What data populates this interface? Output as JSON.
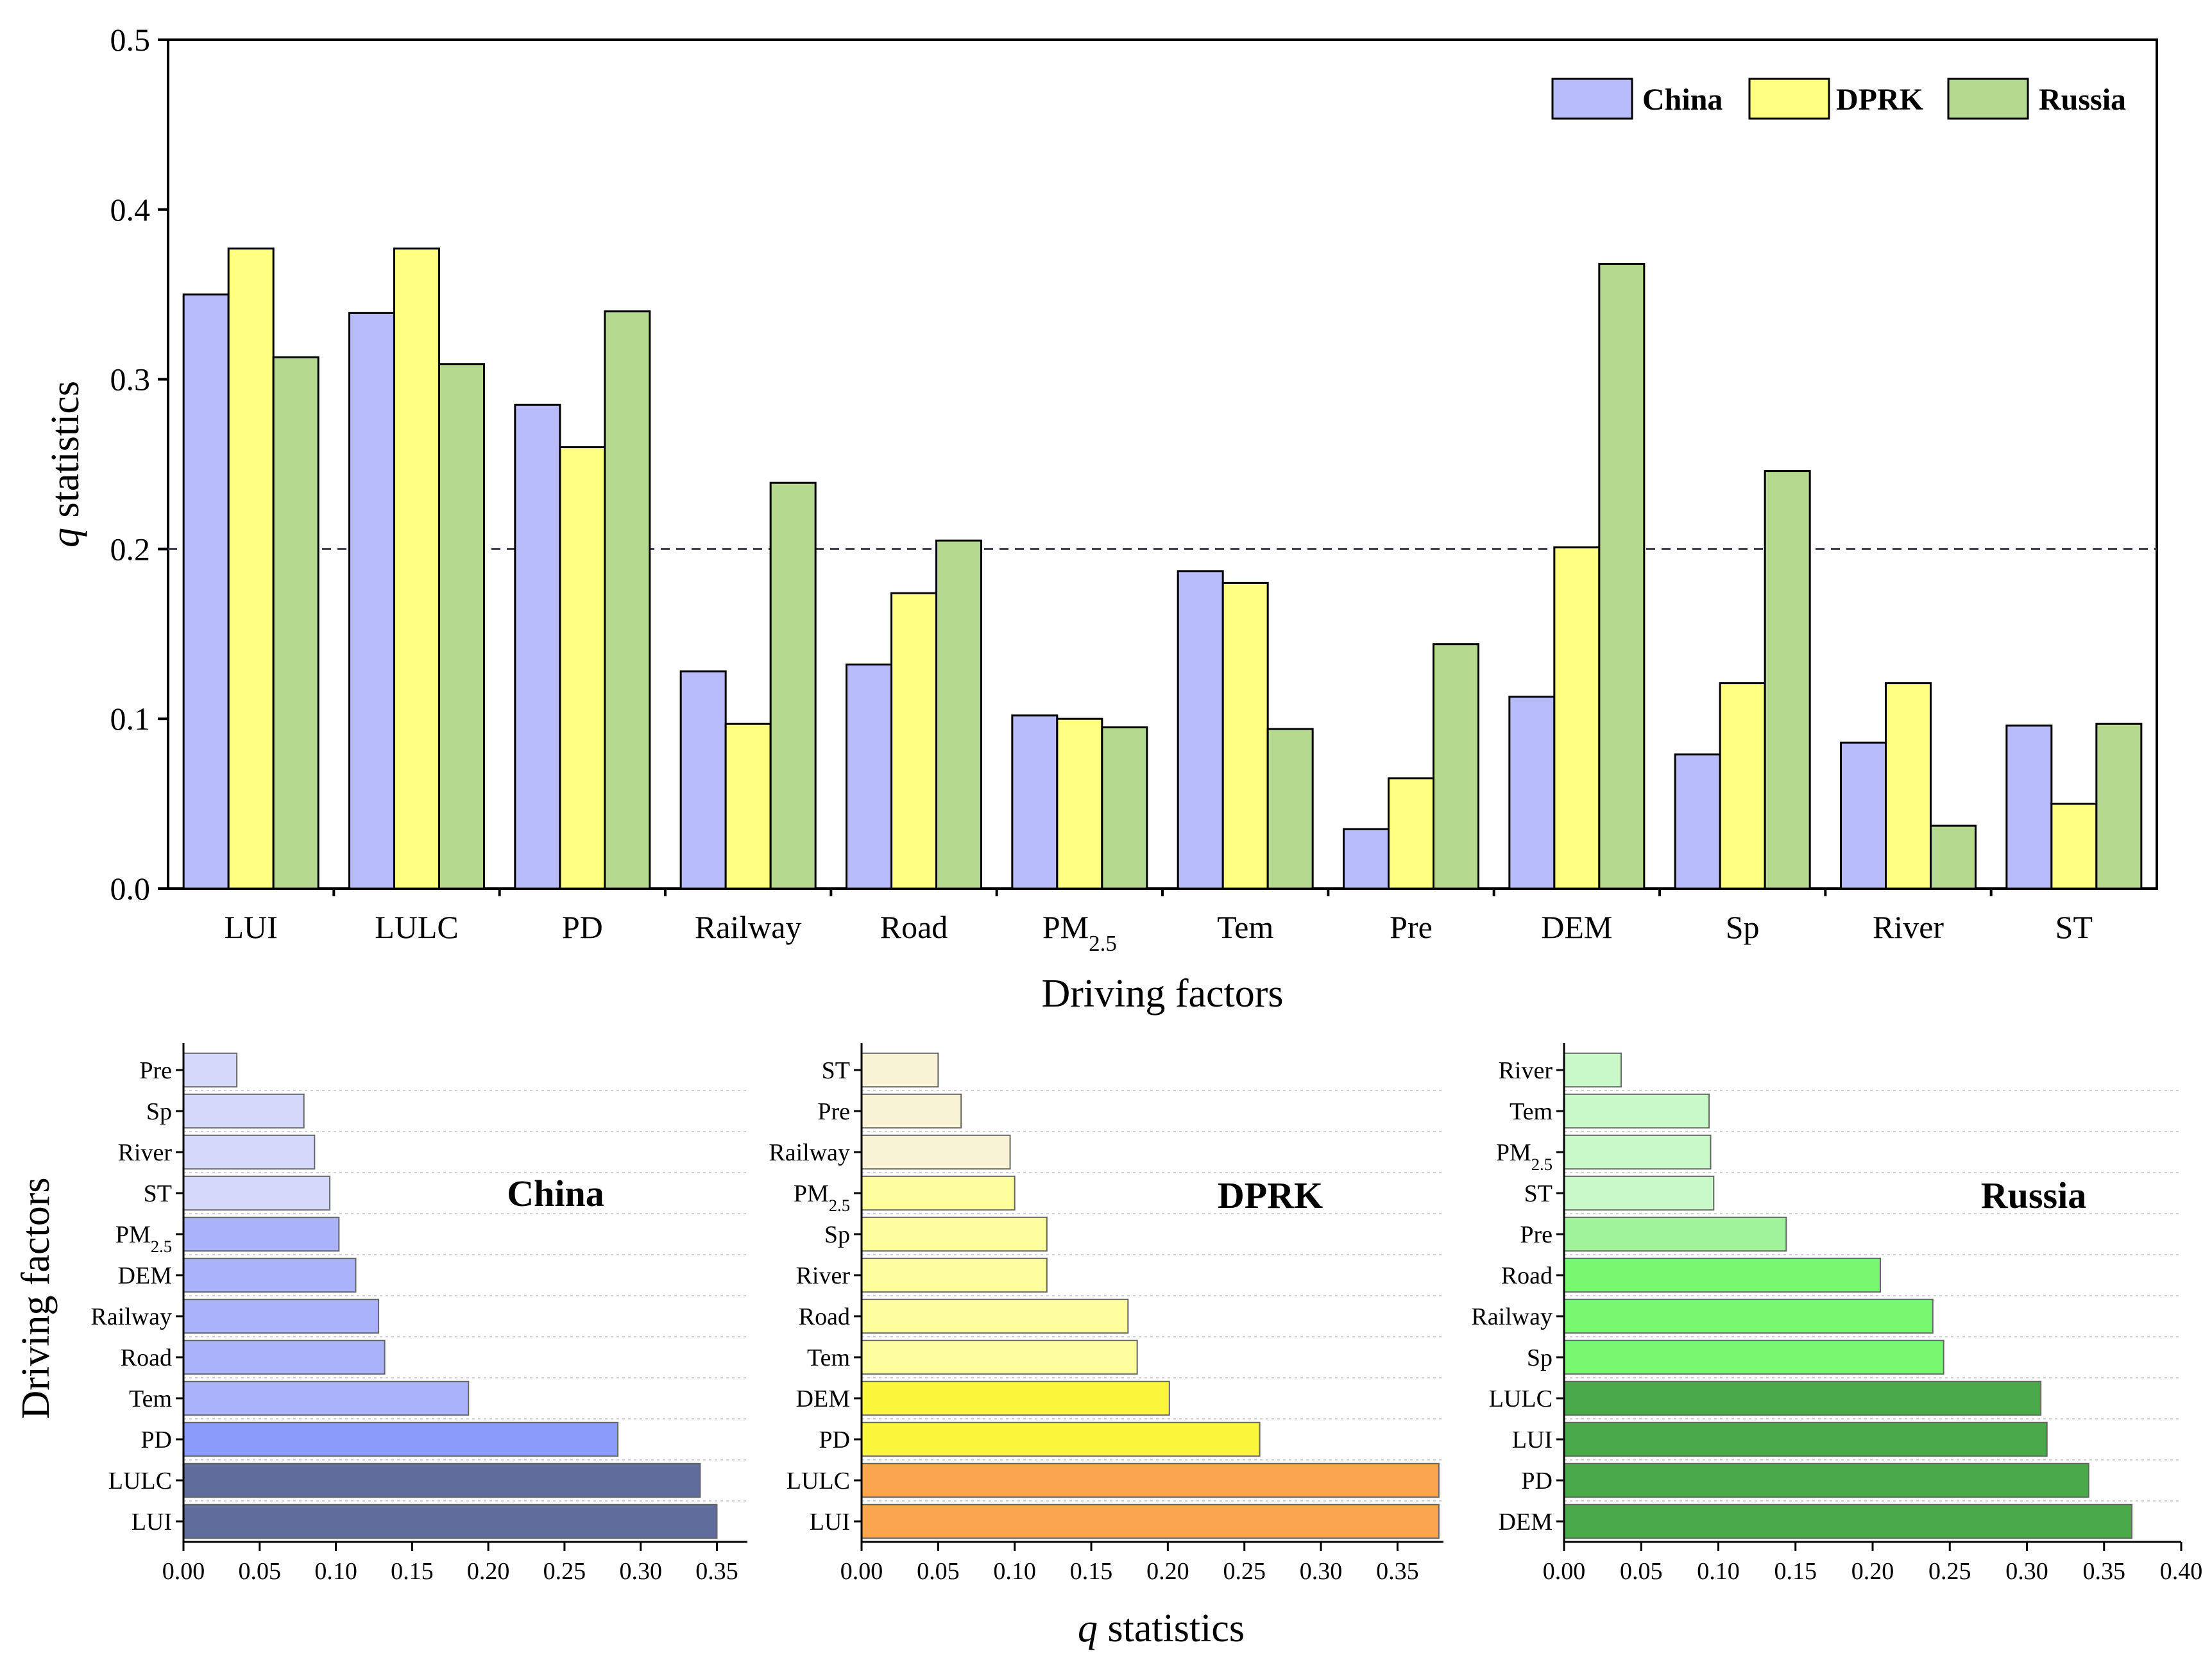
{
  "chart_data": [
    {
      "type": "bar",
      "title": "",
      "xlabel": "Driving factors",
      "ylabel_italic": "q",
      "ylabel_rest": " statistics",
      "ylim": [
        0,
        0.5
      ],
      "yticks": [
        "0.0",
        "0.1",
        "0.2",
        "0.3",
        "0.4",
        "0.5"
      ],
      "threshold": 0.2,
      "categories": [
        "LUI",
        "LULC",
        "PD",
        "Railway",
        "Road",
        "PM2.5",
        "Tem",
        "Pre",
        "DEM",
        "Sp",
        "River",
        "ST"
      ],
      "series": [
        {
          "name": "China",
          "color": "#b8bcfc",
          "values": [
            0.35,
            0.339,
            0.285,
            0.128,
            0.132,
            0.102,
            0.187,
            0.035,
            0.113,
            0.079,
            0.086,
            0.096
          ]
        },
        {
          "name": "DPRK",
          "color": "#fefe80",
          "values": [
            0.377,
            0.377,
            0.26,
            0.097,
            0.174,
            0.1,
            0.18,
            0.065,
            0.201,
            0.121,
            0.121,
            0.05
          ]
        },
        {
          "name": "Russia",
          "color": "#b5d98f",
          "values": [
            0.313,
            0.309,
            0.34,
            0.239,
            0.205,
            0.095,
            0.094,
            0.144,
            0.368,
            0.246,
            0.037,
            0.097
          ]
        }
      ]
    },
    {
      "type": "bar",
      "orientation": "horizontal",
      "title": "China",
      "xlim": [
        0,
        0.37
      ],
      "xticks": [
        "0.00",
        "0.05",
        "0.10",
        "0.15",
        "0.20",
        "0.25",
        "0.30",
        "0.35"
      ],
      "categories": [
        "Pre",
        "Sp",
        "River",
        "ST",
        "PM2.5",
        "DEM",
        "Railway",
        "Road",
        "Tem",
        "PD",
        "LULC",
        "LUI"
      ],
      "values": [
        0.035,
        0.079,
        0.086,
        0.096,
        0.102,
        0.113,
        0.128,
        0.132,
        0.187,
        0.285,
        0.339,
        0.35
      ],
      "colors": [
        "#d4d8fb",
        "#d4d8fb",
        "#d4d8fb",
        "#d4d8fb",
        "#aab2fa",
        "#aab2fa",
        "#aab2fa",
        "#aab2fa",
        "#aab2fa",
        "#8a9bfb",
        "#5f6c9c",
        "#5f6c9c"
      ]
    },
    {
      "type": "bar",
      "orientation": "horizontal",
      "title": "DPRK",
      "xlim": [
        0,
        0.38
      ],
      "xticks": [
        "0.00",
        "0.05",
        "0.10",
        "0.15",
        "0.20",
        "0.25",
        "0.30",
        "0.35"
      ],
      "categories": [
        "ST",
        "Pre",
        "Railway",
        "PM2.5",
        "Sp",
        "River",
        "Road",
        "Tem",
        "DEM",
        "PD",
        "LULC",
        "LUI"
      ],
      "values": [
        0.05,
        0.065,
        0.097,
        0.1,
        0.121,
        0.121,
        0.174,
        0.18,
        0.201,
        0.26,
        0.377,
        0.377
      ],
      "colors": [
        "#f8f3d4",
        "#f8f3d4",
        "#f8f3d4",
        "#fefe9e",
        "#fefe9e",
        "#fefe9e",
        "#fefe9e",
        "#fefe9e",
        "#f9f63c",
        "#f9f63c",
        "#fba64c",
        "#fba64c"
      ]
    },
    {
      "type": "bar",
      "orientation": "horizontal",
      "title": "Russia",
      "xlim": [
        0,
        0.4
      ],
      "xticks": [
        "0.00",
        "0.05",
        "0.10",
        "0.15",
        "0.20",
        "0.25",
        "0.30",
        "0.35",
        "0.40"
      ],
      "categories": [
        "River",
        "Tem",
        "PM2.5",
        "ST",
        "Pre",
        "Road",
        "Railway",
        "Sp",
        "LULC",
        "LUI",
        "PD",
        "DEM"
      ],
      "values": [
        0.037,
        0.094,
        0.095,
        0.097,
        0.144,
        0.205,
        0.239,
        0.246,
        0.309,
        0.313,
        0.34,
        0.368
      ],
      "colors": [
        "#c9f9c9",
        "#c9f9c9",
        "#c9f9c9",
        "#c9f9c9",
        "#a1f39b",
        "#78f870",
        "#78f870",
        "#78f870",
        "#4aaa4a",
        "#4aaa4a",
        "#4aaa4a",
        "#4aaa4a"
      ]
    }
  ],
  "bottom_axis": {
    "ylabel": "Driving factors",
    "xlabel_italic": "q",
    "xlabel_rest": " statistics"
  }
}
